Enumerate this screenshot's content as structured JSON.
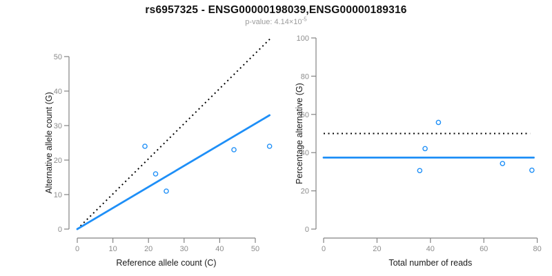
{
  "figure": {
    "title": "rs6957325 - ENSG00000198039,ENSG00000189316",
    "p_value": {
      "label": "p-value: 4.14×10",
      "exponent": "-5"
    }
  },
  "colors": {
    "accent_blue": "#1e8ff7",
    "dotted_black": "#000000",
    "axis_gray": "#828282",
    "tick_label_gray": "#8c8c8c",
    "axis_title_black": "#1a1a1a",
    "subtitle_gray": "#9b9b9b"
  },
  "chart_data": [
    {
      "type": "scatter",
      "title": "",
      "xlabel": "Reference allele count (C)",
      "ylabel": "Alternative allele count (G)",
      "xlim": [
        0,
        54
      ],
      "ylim": [
        0,
        55
      ],
      "grid": false,
      "legend": null,
      "xticks": [
        0,
        10,
        20,
        30,
        40,
        50
      ],
      "yticks": [
        0,
        10,
        20,
        30,
        40,
        50
      ],
      "points": [
        {
          "x": 19,
          "y": 24
        },
        {
          "x": 22,
          "y": 16
        },
        {
          "x": 25,
          "y": 11
        },
        {
          "x": 44,
          "y": 23
        },
        {
          "x": 54,
          "y": 24
        }
      ],
      "lines": [
        {
          "name": "identity-line",
          "style": "dotted",
          "color": "#000000",
          "from": {
            "x": 0,
            "y": 0
          },
          "to": {
            "x": 54.2,
            "y": 55.2
          }
        },
        {
          "name": "fit-line",
          "style": "solid",
          "color": "#1e8ff7",
          "from": {
            "x": 0,
            "y": 0
          },
          "to": {
            "x": 54,
            "y": 33
          }
        }
      ]
    },
    {
      "type": "scatter",
      "title": "",
      "xlabel": "Total number of reads",
      "ylabel": "Percentage alternative (G)",
      "xlim": [
        0,
        80
      ],
      "ylim": [
        0,
        100
      ],
      "grid": false,
      "legend": null,
      "xticks": [
        0,
        20,
        40,
        60,
        80
      ],
      "yticks": [
        0,
        20,
        40,
        60,
        80,
        100
      ],
      "points": [
        {
          "x": 43,
          "y": 55.8
        },
        {
          "x": 38,
          "y": 42.1
        },
        {
          "x": 36,
          "y": 30.6
        },
        {
          "x": 67,
          "y": 34.3
        },
        {
          "x": 78,
          "y": 30.8
        }
      ],
      "lines": [
        {
          "name": "identity-line",
          "style": "dotted",
          "color": "#000000",
          "from": {
            "x": 0,
            "y": 50
          },
          "to": {
            "x": 77.3,
            "y": 50
          }
        },
        {
          "name": "fit-line",
          "style": "solid",
          "color": "#1e8ff7",
          "from": {
            "x": 0,
            "y": 37.4
          },
          "to": {
            "x": 78.7,
            "y": 37.4
          }
        }
      ]
    }
  ]
}
